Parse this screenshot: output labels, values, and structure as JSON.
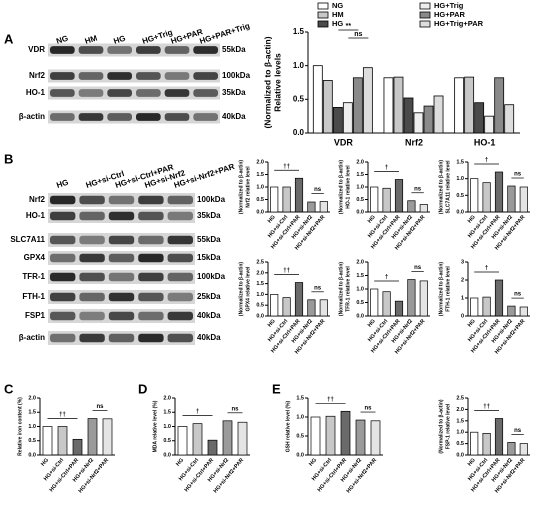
{
  "panel_labels": [
    "A",
    "B",
    "C",
    "D",
    "E"
  ],
  "blots": [
    {
      "lanes": [
        "NG",
        "HM",
        "HG",
        "HG+Trig",
        "HG+PAR",
        "HG+PAR+Trig"
      ],
      "rows": [
        {
          "protein": "VDR",
          "size": "55kDa"
        },
        {
          "protein": "Nrf2",
          "size": "100kDa"
        },
        {
          "protein": "HO-1",
          "size": "35kDa"
        },
        {
          "protein": "β-actin",
          "size": "40kDa"
        }
      ]
    },
    {
      "lanes": [
        "HG",
        "HG+si-Ctrl",
        "HG+si-Ctrl+PAR",
        "HG+si-Nrf2",
        "HG+si-Nrf2+PAR"
      ],
      "rows": [
        {
          "protein": "Nrf2",
          "size": "100kDa"
        },
        {
          "protein": "HO-1",
          "size": "35kDa"
        },
        {
          "protein": "SLC7A11",
          "size": "55kDa"
        },
        {
          "protein": "GPX4",
          "size": "15kDa"
        },
        {
          "protein": "TFR-1",
          "size": "100kDa"
        },
        {
          "protein": "FTH-1",
          "size": "25kDa"
        },
        {
          "protein": "FSP1",
          "size": "40kDa"
        },
        {
          "protein": "β-actin",
          "size": "40kDa"
        }
      ]
    }
  ],
  "chart_data": [
    {
      "type": "bar",
      "y_label": [
        "Relative levels",
        "(Normalized to β-actin)"
      ],
      "categories": [
        "VDR",
        "Nrf2",
        "HO-1"
      ],
      "series": [
        {
          "name": "NG",
          "color": "#ffffff",
          "values": [
            1.0,
            0.82,
            0.82
          ]
        },
        {
          "name": "HM",
          "color": "#c8c8c8",
          "values": [
            0.78,
            0.83,
            0.83
          ]
        },
        {
          "name": "HG",
          "color": "#4a4a4a",
          "values": [
            0.38,
            0.52,
            0.45
          ]
        },
        {
          "name": "HG+Trig",
          "color": "#eeeeee",
          "values": [
            0.45,
            0.3,
            0.25
          ]
        },
        {
          "name": "HG+PAR",
          "color": "#8a8a8a",
          "values": [
            0.82,
            0.4,
            0.82
          ]
        },
        {
          "name": "HG+Trig+PAR",
          "color": "#dddddd",
          "values": [
            0.97,
            0.55,
            0.42
          ]
        }
      ],
      "ylim": [
        0,
        1.5
      ],
      "yticks": [
        {
          "value": 0,
          "label": "0.0"
        },
        {
          "value": 0.5,
          "label": "0.5"
        },
        {
          "value": 1,
          "label": "1.0"
        },
        {
          "value": 1.5,
          "label": "1.5"
        }
      ],
      "annotations": [
        "**",
        "ns"
      ]
    },
    {
      "type": "bar",
      "y_label": [
        "Nrf2 relative level",
        "(Normalized to β-actin)"
      ],
      "categories": [
        "HG",
        "HG+si-Ctrl",
        "HG+si-Ctrl+PAR",
        "HG+si-Nrf2",
        "HG+si-Nrf2+PAR"
      ],
      "values": [
        1.0,
        1.0,
        1.35,
        0.4,
        0.42
      ],
      "colors": [
        "#ffffff",
        "#c8c8c8",
        "#6a6a6a",
        "#9a9a9a",
        "#e4e4e4"
      ],
      "ylim": [
        0,
        2
      ],
      "yticks": [
        {
          "value": 0,
          "label": "0.0"
        },
        {
          "value": 0.5,
          "label": "0.5"
        },
        {
          "value": 1,
          "label": "1.0"
        },
        {
          "value": 1.5,
          "label": "1.5"
        },
        {
          "value": 2,
          "label": "2.0"
        }
      ],
      "annotations": [
        "††",
        "ns"
      ]
    },
    {
      "type": "bar",
      "y_label": [
        "HO-1 relative level",
        "(Normalized to β-actin)"
      ],
      "categories": [
        "HG",
        "HG+si-Ctrl",
        "HG+si-Ctrl+PAR",
        "HG+si-Nrf2",
        "HG+si-Nrf2+PAR"
      ],
      "values": [
        1.0,
        0.95,
        1.3,
        0.45,
        0.3
      ],
      "colors": [
        "#ffffff",
        "#c8c8c8",
        "#6a6a6a",
        "#9a9a9a",
        "#e4e4e4"
      ],
      "ylim": [
        0,
        2
      ],
      "yticks": [
        {
          "value": 0,
          "label": "0.0"
        },
        {
          "value": 0.5,
          "label": "0.5"
        },
        {
          "value": 1,
          "label": "1.0"
        },
        {
          "value": 1.5,
          "label": "1.5"
        },
        {
          "value": 2,
          "label": "2.0"
        }
      ],
      "annotations": [
        "†",
        "ns"
      ]
    },
    {
      "type": "bar",
      "y_label": [
        "SLC7A11 relative level",
        "(Normalized to β-actin)"
      ],
      "categories": [
        "HG",
        "HG+si-Ctrl",
        "HG+si-Ctrl+PAR",
        "HG+si-Nrf2",
        "HG+si-Nrf2+PAR"
      ],
      "values": [
        1.0,
        0.88,
        1.2,
        0.78,
        0.75
      ],
      "colors": [
        "#ffffff",
        "#c8c8c8",
        "#6a6a6a",
        "#9a9a9a",
        "#e4e4e4"
      ],
      "ylim": [
        0,
        1.5
      ],
      "yticks": [
        {
          "value": 0,
          "label": "0.0"
        },
        {
          "value": 0.5,
          "label": "0.5"
        },
        {
          "value": 1,
          "label": "1.0"
        },
        {
          "value": 1.5,
          "label": "1.5"
        }
      ],
      "annotations": [
        "†",
        "ns"
      ]
    },
    {
      "type": "bar",
      "y_label": [
        "GPX4 relative level",
        "(Normalized to β-actin)"
      ],
      "categories": [
        "HG",
        "HG+si-Ctrl",
        "HG+si-Ctrl+PAR",
        "HG+si-Nrf2",
        "HG+si-Nrf2+PAR"
      ],
      "values": [
        1.0,
        0.85,
        1.55,
        0.75,
        0.75
      ],
      "colors": [
        "#ffffff",
        "#c8c8c8",
        "#6a6a6a",
        "#9a9a9a",
        "#e4e4e4"
      ],
      "ylim": [
        0,
        2.5
      ],
      "yticks": [
        {
          "value": 0,
          "label": "0.0"
        },
        {
          "value": 0.5,
          "label": "0.5"
        },
        {
          "value": 1,
          "label": "1.0"
        },
        {
          "value": 1.5,
          "label": "1.5"
        },
        {
          "value": 2,
          "label": "2.0"
        },
        {
          "value": 2.5,
          "label": "2.5"
        }
      ],
      "annotations": [
        "††",
        "ns"
      ]
    },
    {
      "type": "bar",
      "y_label": [
        "TFR-1 relative level",
        "(Normalized to β-actin)"
      ],
      "categories": [
        "HG",
        "HG+si-Ctrl",
        "HG+si-Ctrl+PAR",
        "HG+si-Nrf2",
        "HG+si-Nrf2+PAR"
      ],
      "values": [
        1.0,
        0.9,
        0.55,
        1.35,
        1.3
      ],
      "colors": [
        "#ffffff",
        "#c8c8c8",
        "#6a6a6a",
        "#9a9a9a",
        "#e4e4e4"
      ],
      "ylim": [
        0,
        2
      ],
      "yticks": [
        {
          "value": 0,
          "label": "0.0"
        },
        {
          "value": 0.5,
          "label": "0.5"
        },
        {
          "value": 1,
          "label": "1.0"
        },
        {
          "value": 1.5,
          "label": "1.5"
        },
        {
          "value": 2,
          "label": "2.0"
        }
      ],
      "annotations": [
        "†",
        "ns"
      ]
    },
    {
      "type": "bar",
      "y_label": [
        "FTH-1 relative level",
        "(Normalized to β-actin)"
      ],
      "categories": [
        "HG",
        "HG+si-Ctrl",
        "HG+si-Ctrl+PAR",
        "HG+si-Nrf2",
        "HG+si-Nrf2+PAR"
      ],
      "values": [
        1.0,
        1.05,
        2.0,
        0.55,
        0.5
      ],
      "colors": [
        "#ffffff",
        "#c8c8c8",
        "#6a6a6a",
        "#9a9a9a",
        "#e4e4e4"
      ],
      "ylim": [
        0,
        3
      ],
      "yticks": [
        0,
        1,
        2,
        3
      ],
      "annotations": [
        "†",
        "ns"
      ]
    },
    {
      "type": "bar",
      "y_label": [
        "Relative iron content (%)"
      ],
      "categories": [
        "HG",
        "HG+si-Ctrl",
        "HG+si-Ctrl+PAR",
        "HG+si-Nrf2",
        "HG+si-Nrf2+PAR"
      ],
      "values": [
        1.0,
        1.0,
        0.55,
        1.28,
        1.27
      ],
      "colors": [
        "#ffffff",
        "#c8c8c8",
        "#6a6a6a",
        "#9a9a9a",
        "#e4e4e4"
      ],
      "ylim": [
        0,
        2
      ],
      "yticks": [
        {
          "value": 0,
          "label": "0.0"
        },
        {
          "value": 0.5,
          "label": "0.5"
        },
        {
          "value": 1,
          "label": "1.0"
        },
        {
          "value": 1.5,
          "label": "1.5"
        },
        {
          "value": 2,
          "label": "2.0"
        }
      ],
      "annotations": [
        "††",
        "ns"
      ]
    },
    {
      "type": "bar",
      "y_label": [
        "MDA relative level (%)"
      ],
      "categories": [
        "HG",
        "HG+si-Ctrl",
        "HG+si-Ctrl+PAR",
        "HG+si-Nrf2",
        "HG+si-Nrf2+PAR"
      ],
      "values": [
        1.0,
        1.1,
        0.52,
        1.2,
        1.15
      ],
      "colors": [
        "#ffffff",
        "#c8c8c8",
        "#6a6a6a",
        "#9a9a9a",
        "#e4e4e4"
      ],
      "ylim": [
        0,
        2
      ],
      "yticks": [
        {
          "value": 0,
          "label": "0.0"
        },
        {
          "value": 0.5,
          "label": "0.5"
        },
        {
          "value": 1,
          "label": "1.0"
        },
        {
          "value": 1.5,
          "label": "1.5"
        },
        {
          "value": 2,
          "label": "2.0"
        }
      ],
      "annotations": [
        "†",
        "ns"
      ]
    },
    {
      "type": "bar",
      "y_label": [
        "GSH relative level (%)"
      ],
      "categories": [
        "HG",
        "HG+si-Ctrl",
        "HG+si-Ctrl+PAR",
        "HG+si-Nrf2",
        "HG+si-Nrf2+PAR"
      ],
      "values": [
        1.0,
        1.02,
        1.15,
        0.92,
        0.9
      ],
      "colors": [
        "#ffffff",
        "#c8c8c8",
        "#6a6a6a",
        "#9a9a9a",
        "#e4e4e4"
      ],
      "ylim": [
        0,
        1.5
      ],
      "yticks": [
        {
          "value": 0,
          "label": "0.0"
        },
        {
          "value": 0.5,
          "label": "0.5"
        },
        {
          "value": 1,
          "label": "1.0"
        },
        {
          "value": 1.5,
          "label": "1.5"
        }
      ],
      "annotations": [
        "††",
        "ns"
      ]
    },
    {
      "type": "bar",
      "y_label": [
        "FSP-1 relative level",
        "(Normalized to β-actin)"
      ],
      "categories": [
        "HG",
        "HG+si-Ctrl",
        "HG+si-Ctrl+PAR",
        "HG+si-Nrf2",
        "HG+si-Nrf2+PAR"
      ],
      "values": [
        1.0,
        0.95,
        1.6,
        0.55,
        0.5
      ],
      "colors": [
        "#ffffff",
        "#c8c8c8",
        "#6a6a6a",
        "#9a9a9a",
        "#e4e4e4"
      ],
      "ylim": [
        0,
        2.5
      ],
      "yticks": [
        {
          "value": 0,
          "label": "0.0"
        },
        {
          "value": 0.5,
          "label": "0.5"
        },
        {
          "value": 1,
          "label": "1.0"
        },
        {
          "value": 1.5,
          "label": "1.5"
        },
        {
          "value": 2,
          "label": "2.0"
        },
        {
          "value": 2.5,
          "label": "2.5"
        }
      ],
      "annotations": [
        "††",
        "ns"
      ]
    }
  ]
}
